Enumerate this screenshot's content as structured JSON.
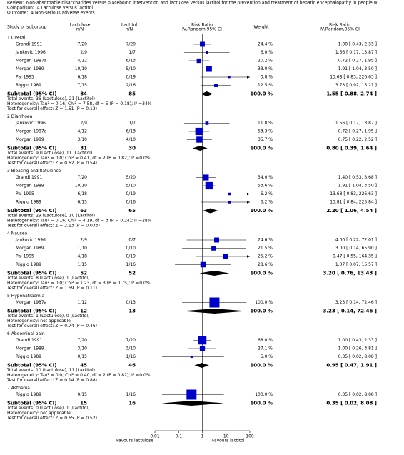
{
  "chart_data": {
    "type": "forest",
    "header": [
      "Review:  Non-absorbable disaccharides versus placebo/no intervention and lactulose versus lactitol for the prevention and treatment of hepatic encephalopathy in people w",
      "Comparison:  4 Lactulose versus lactitol",
      "Outcome:  4 Non-serious adverse events"
    ],
    "columns": {
      "study": "Study or subgroup",
      "lactulose": [
        "Lactulose",
        "n/N"
      ],
      "lactitol": [
        "Lactitol",
        "n/N"
      ],
      "plot": [
        "Risk Ratio",
        "IV,Random,95% CI"
      ],
      "weight": "Weight",
      "ci": [
        "Risk Ratio",
        "IV,Random,95% CI"
      ]
    },
    "color": "#0000cc",
    "log_scale": true,
    "xlim": [
      0.01,
      100
    ],
    "xticks": [
      0.01,
      0.1,
      1,
      10,
      100
    ],
    "reference_line": 1,
    "favours_left": "Favours lactulose",
    "favours_right": "Favours lactitol",
    "groups": [
      {
        "title": "1 Overall",
        "studies": [
          {
            "name": "Grandi 1991",
            "lactulose": "7/20",
            "lactitol": "7/20",
            "weight": 24.4,
            "weight_label": "24.4 %",
            "rr": 1.0,
            "lo": 0.43,
            "hi": 2.33,
            "ci_label": "1.00 [ 0.43, 2.33 ]"
          },
          {
            "name": "Jankovic 1996",
            "lactulose": "2/9",
            "lactitol": "1/7",
            "weight": 6.0,
            "weight_label": "6.0 %",
            "rr": 1.56,
            "lo": 0.17,
            "hi": 13.87,
            "ci_label": "1.56 [ 0.17, 13.87 ]"
          },
          {
            "name": "Morgan 1987a",
            "lactulose": "4/12",
            "lactitol": "6/13",
            "weight": 20.2,
            "weight_label": "20.2 %",
            "rr": 0.72,
            "lo": 0.27,
            "hi": 1.95,
            "ci_label": "0.72 [ 0.27, 1.95 ]"
          },
          {
            "name": "Morgan 1989",
            "lactulose": "10/10",
            "lactitol": "5/10",
            "weight": 33.0,
            "weight_label": "33.0 %",
            "rr": 1.91,
            "lo": 1.04,
            "hi": 3.5,
            "ci_label": "1.91 [ 1.04, 3.50 ]"
          },
          {
            "name": "Pai 1995",
            "lactulose": "6/18",
            "lactitol": "0/19",
            "weight": 3.8,
            "weight_label": "3.8 %",
            "rr": 13.68,
            "lo": 0.83,
            "hi": 226.63,
            "ci_label": "13.68 [ 0.83, 226.63 ]"
          },
          {
            "name": "Riggio 1989",
            "lactulose": "7/15",
            "lactitol": "2/16",
            "weight": 12.5,
            "weight_label": "12.5 %",
            "rr": 3.73,
            "lo": 0.92,
            "hi": 15.21,
            "ci_label": "3.73 [ 0.92, 15.21 ]"
          }
        ],
        "subtotal": {
          "label": "Subtotal (95% CI)",
          "lactulose": 84,
          "lactitol": 85,
          "weight_label": "100.0 %",
          "rr": 1.55,
          "lo": 0.88,
          "hi": 2.74,
          "ci_label": "1.55 [ 0.88, 2.74 ]"
        },
        "notes": [
          "Total events: 36 (Lactulose), 21 (Lactitol)",
          "Heterogeneity: Tau² = 0.16; Chi² = 7.58, df = 5 (P = 0.18); I² =34%",
          "Test for overall effect: Z = 1.51 (P = 0.13)"
        ]
      },
      {
        "title": "2 Diarrhoea",
        "studies": [
          {
            "name": "Jankovic 1996",
            "lactulose": "2/9",
            "lactitol": "1/7",
            "weight": 11.0,
            "weight_label": "11.0 %",
            "rr": 1.56,
            "lo": 0.17,
            "hi": 13.87,
            "ci_label": "1.56 [ 0.17, 13.87 ]"
          },
          {
            "name": "Morgan 1987a",
            "lactulose": "4/12",
            "lactitol": "6/13",
            "weight": 53.3,
            "weight_label": "53.3 %",
            "rr": 0.72,
            "lo": 0.27,
            "hi": 1.95,
            "ci_label": "0.72 [ 0.27, 1.95 ]"
          },
          {
            "name": "Morgan 1989",
            "lactulose": "3/10",
            "lactitol": "4/10",
            "weight": 35.7,
            "weight_label": "35.7 %",
            "rr": 0.75,
            "lo": 0.22,
            "hi": 2.52,
            "ci_label": "0.75 [ 0.22, 2.52 ]"
          }
        ],
        "subtotal": {
          "label": "Subtotal (95% CI)",
          "lactulose": 31,
          "lactitol": 30,
          "weight_label": "100.0 %",
          "rr": 0.8,
          "lo": 0.39,
          "hi": 1.64,
          "ci_label": "0.80 [ 0.39, 1.64 ]"
        },
        "notes": [
          "Total events: 9 (Lactulose), 11 (Lactitol)",
          "Heterogeneity: Tau² = 0.0; Chi² = 0.41, df = 2 (P = 0.82); I² =0.0%",
          "Test for overall effect: Z = 0.62 (P = 0.54)"
        ]
      },
      {
        "title": "3 Bloating and flatulence",
        "studies": [
          {
            "name": "Grandi 1991",
            "lactulose": "7/20",
            "lactitol": "5/20",
            "weight": 34.0,
            "weight_label": "34.0 %",
            "rr": 1.4,
            "lo": 0.53,
            "hi": 3.68,
            "ci_label": "1.40 [ 0.53, 3.68 ]"
          },
          {
            "name": "Morgan 1989",
            "lactulose": "10/10",
            "lactitol": "5/10",
            "weight": 53.6,
            "weight_label": "53.6 %",
            "rr": 1.91,
            "lo": 1.04,
            "hi": 3.5,
            "ci_label": "1.91 [ 1.04, 3.50 ]"
          },
          {
            "name": "Pai 1995",
            "lactulose": "6/18",
            "lactitol": "0/19",
            "weight": 6.2,
            "weight_label": "6.2 %",
            "rr": 13.68,
            "lo": 0.83,
            "hi": 226.63,
            "ci_label": "13.68 [ 0.83, 226.63 ]"
          },
          {
            "name": "Riggio 1989",
            "lactulose": "6/15",
            "lactitol": "0/16",
            "weight": 6.2,
            "weight_label": "6.2 %",
            "rr": 13.81,
            "lo": 0.84,
            "hi": 225.84,
            "ci_label": "13.81 [ 0.84, 225.84 ]"
          }
        ],
        "subtotal": {
          "label": "Subtotal (95% CI)",
          "lactulose": 63,
          "lactitol": 65,
          "weight_label": "100.0 %",
          "rr": 2.2,
          "lo": 1.06,
          "hi": 4.54,
          "ci_label": "2.20 [ 1.06, 4.54 ]"
        },
        "notes": [
          "Total events: 29 (Lactulose), 10 (Lactitol)",
          "Heterogeneity: Tau² = 0.16; Chi² = 4.19, df = 3 (P = 0.24); I² =28%",
          "Test for overall effect: Z = 2.13 (P = 0.033)"
        ]
      },
      {
        "title": "4 Nausea",
        "studies": [
          {
            "name": "Jankovic 1996",
            "lactulose": "2/9",
            "lactitol": "0/7",
            "weight": 24.6,
            "weight_label": "24.6 %",
            "rr": 4.0,
            "lo": 0.22,
            "hi": 72.01,
            "ci_label": "4.00 [ 0.22, 72.01 ]"
          },
          {
            "name": "Morgan 1989",
            "lactulose": "1/10",
            "lactitol": "0/10",
            "weight": 21.5,
            "weight_label": "21.5 %",
            "rr": 3.0,
            "lo": 0.14,
            "hi": 65.9,
            "ci_label": "3.00 [ 0.14, 65.90 ]"
          },
          {
            "name": "Pai 1995",
            "lactulose": "4/18",
            "lactitol": "0/19",
            "weight": 25.2,
            "weight_label": "25.2 %",
            "rr": 9.47,
            "lo": 0.55,
            "hi": 164.35,
            "ci_label": "9.47 [ 0.55, 164.35 ]"
          },
          {
            "name": "Riggio 1989",
            "lactulose": "1/15",
            "lactitol": "1/16",
            "weight": 28.6,
            "weight_label": "28.6 %",
            "rr": 1.07,
            "lo": 0.07,
            "hi": 15.57,
            "ci_label": "1.07 [ 0.07, 15.57 ]"
          }
        ],
        "subtotal": {
          "label": "Subtotal (95% CI)",
          "lactulose": 52,
          "lactitol": 52,
          "weight_label": "100.0 %",
          "rr": 3.2,
          "lo": 0.76,
          "hi": 13.43,
          "ci_label": "3.20 [ 0.76, 13.43 ]"
        },
        "notes": [
          "Total events: 8 (Lactulose), 1 (Lactitol)",
          "Heterogeneity: Tau² = 0.0; Chi² = 1.23, df = 3 (P = 0.75); I² =0.0%",
          "Test for overall effect: Z = 1.59 (P = 0.11)"
        ]
      },
      {
        "title": "5 Hyponatraemia",
        "studies": [
          {
            "name": "Morgan 1987a",
            "lactulose": "1/12",
            "lactitol": "0/13",
            "weight": 100.0,
            "weight_label": "100.0 %",
            "rr": 3.23,
            "lo": 0.14,
            "hi": 72.46,
            "ci_label": "3.23 [ 0.14, 72.46 ]"
          }
        ],
        "subtotal": {
          "label": "Subtotal (95% CI)",
          "lactulose": 12,
          "lactitol": 13,
          "weight_label": "100.0 %",
          "rr": 3.23,
          "lo": 0.14,
          "hi": 72.46,
          "ci_label": "3.23 [ 0.14, 72.46 ]"
        },
        "notes": [
          "Total events: 1 (Lactulose), 0 (Lactitol)",
          "Heterogeneity: not applicable",
          "Test for overall effect: Z = 0.74 (P = 0.46)"
        ]
      },
      {
        "title": "6 Abdominal pain",
        "studies": [
          {
            "name": "Grandi 1991",
            "lactulose": "7/20",
            "lactitol": "7/20",
            "weight": 68.0,
            "weight_label": "68.0 %",
            "rr": 1.0,
            "lo": 0.43,
            "hi": 2.33,
            "ci_label": "1.00 [ 0.43, 2.33 ]"
          },
          {
            "name": "Morgan 1989",
            "lactulose": "3/10",
            "lactitol": "3/10",
            "weight": 27.1,
            "weight_label": "27.1 %",
            "rr": 1.0,
            "lo": 0.26,
            "hi": 3.81,
            "ci_label": "1.00 [ 0.26, 3.81 ]"
          },
          {
            "name": "Riggio 1989",
            "lactulose": "0/15",
            "lactitol": "1/16",
            "weight": 5.0,
            "weight_label": "5.0 %",
            "rr": 0.35,
            "lo": 0.02,
            "hi": 8.08,
            "ci_label": "0.35 [ 0.02, 8.08 ]"
          }
        ],
        "subtotal": {
          "label": "Subtotal (95% CI)",
          "lactulose": 45,
          "lactitol": 46,
          "weight_label": "100.0 %",
          "rr": 0.95,
          "lo": 0.47,
          "hi": 1.91,
          "ci_label": "0.95 [ 0.47, 1.91 ]"
        },
        "notes": [
          "Total events: 10 (Lactulose), 11 (Lactitol)",
          "Heterogeneity: Tau² = 0.0; Chi² = 0.40, df = 2 (P = 0.82); I² =0.0%",
          "Test for overall effect: Z = 0.14 (P = 0.88)"
        ]
      },
      {
        "title": "7 Asthenia",
        "studies": [
          {
            "name": "Riggio 1989",
            "lactulose": "0/15",
            "lactitol": "1/16",
            "weight": 100.0,
            "weight_label": "100.0 %",
            "rr": 0.35,
            "lo": 0.02,
            "hi": 8.08,
            "ci_label": "0.35 [ 0.02, 8.08 ]"
          }
        ],
        "subtotal": {
          "label": "Subtotal (95% CI)",
          "lactulose": 15,
          "lactitol": 16,
          "weight_label": "100.0 %",
          "rr": 0.35,
          "lo": 0.02,
          "hi": 8.08,
          "ci_label": "0.35 [ 0.02, 8.08 ]"
        },
        "notes": [
          "Total events: 0 (Lactulose), 1 (Lactitol)",
          "Heterogeneity: not applicable",
          "Test for overall effect: Z = 0.65 (P = 0.52)"
        ]
      }
    ]
  }
}
